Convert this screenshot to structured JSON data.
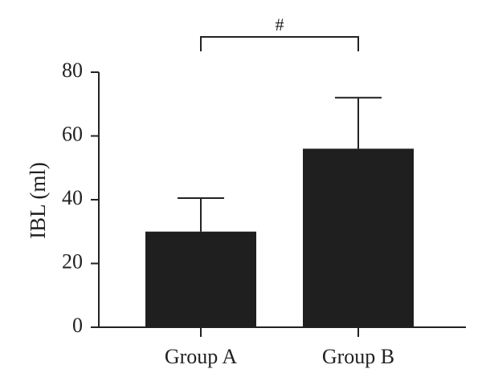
{
  "chart_data": {
    "type": "bar",
    "categories": [
      "Group A",
      "Group B"
    ],
    "values": [
      30,
      56
    ],
    "errors": [
      10.5,
      16
    ],
    "ylabel": "IBL (ml)",
    "xlabel": "",
    "ylim": [
      0,
      80
    ],
    "yticks": [
      "0",
      "20",
      "40",
      "60",
      "80"
    ],
    "significance": {
      "between": [
        "Group A",
        "Group B"
      ],
      "label": "#"
    },
    "bar_color": "#1f1f1f",
    "grid": false
  }
}
